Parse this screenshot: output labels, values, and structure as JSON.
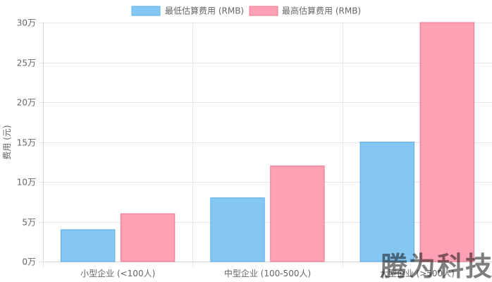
{
  "chart_data": {
    "type": "bar",
    "categories": [
      "小型企业 (<100人)",
      "中型企业 (100-500人)",
      "大型企业 (>500人)"
    ],
    "series": [
      {
        "name": "最低估算费用 (RMB)",
        "values": [
          40000,
          80000,
          150000
        ],
        "fill": "#86c6f2",
        "stroke": "#5aaee6"
      },
      {
        "name": "最高估算费用 (RMB)",
        "values": [
          60000,
          120000,
          300000
        ],
        "fill": "#ffa1b4",
        "stroke": "#f0758f"
      }
    ],
    "ylabel": "费用 (元)",
    "ylim": [
      0,
      300000
    ],
    "yticks": [
      {
        "value": 0,
        "label": "0万"
      },
      {
        "value": 50000,
        "label": "5万"
      },
      {
        "value": 100000,
        "label": "10万"
      },
      {
        "value": 150000,
        "label": "15万"
      },
      {
        "value": 200000,
        "label": "20万"
      },
      {
        "value": 250000,
        "label": "25万"
      },
      {
        "value": 300000,
        "label": "30万"
      }
    ],
    "grid": true,
    "legend": "top"
  },
  "watermark": "腾为科技"
}
